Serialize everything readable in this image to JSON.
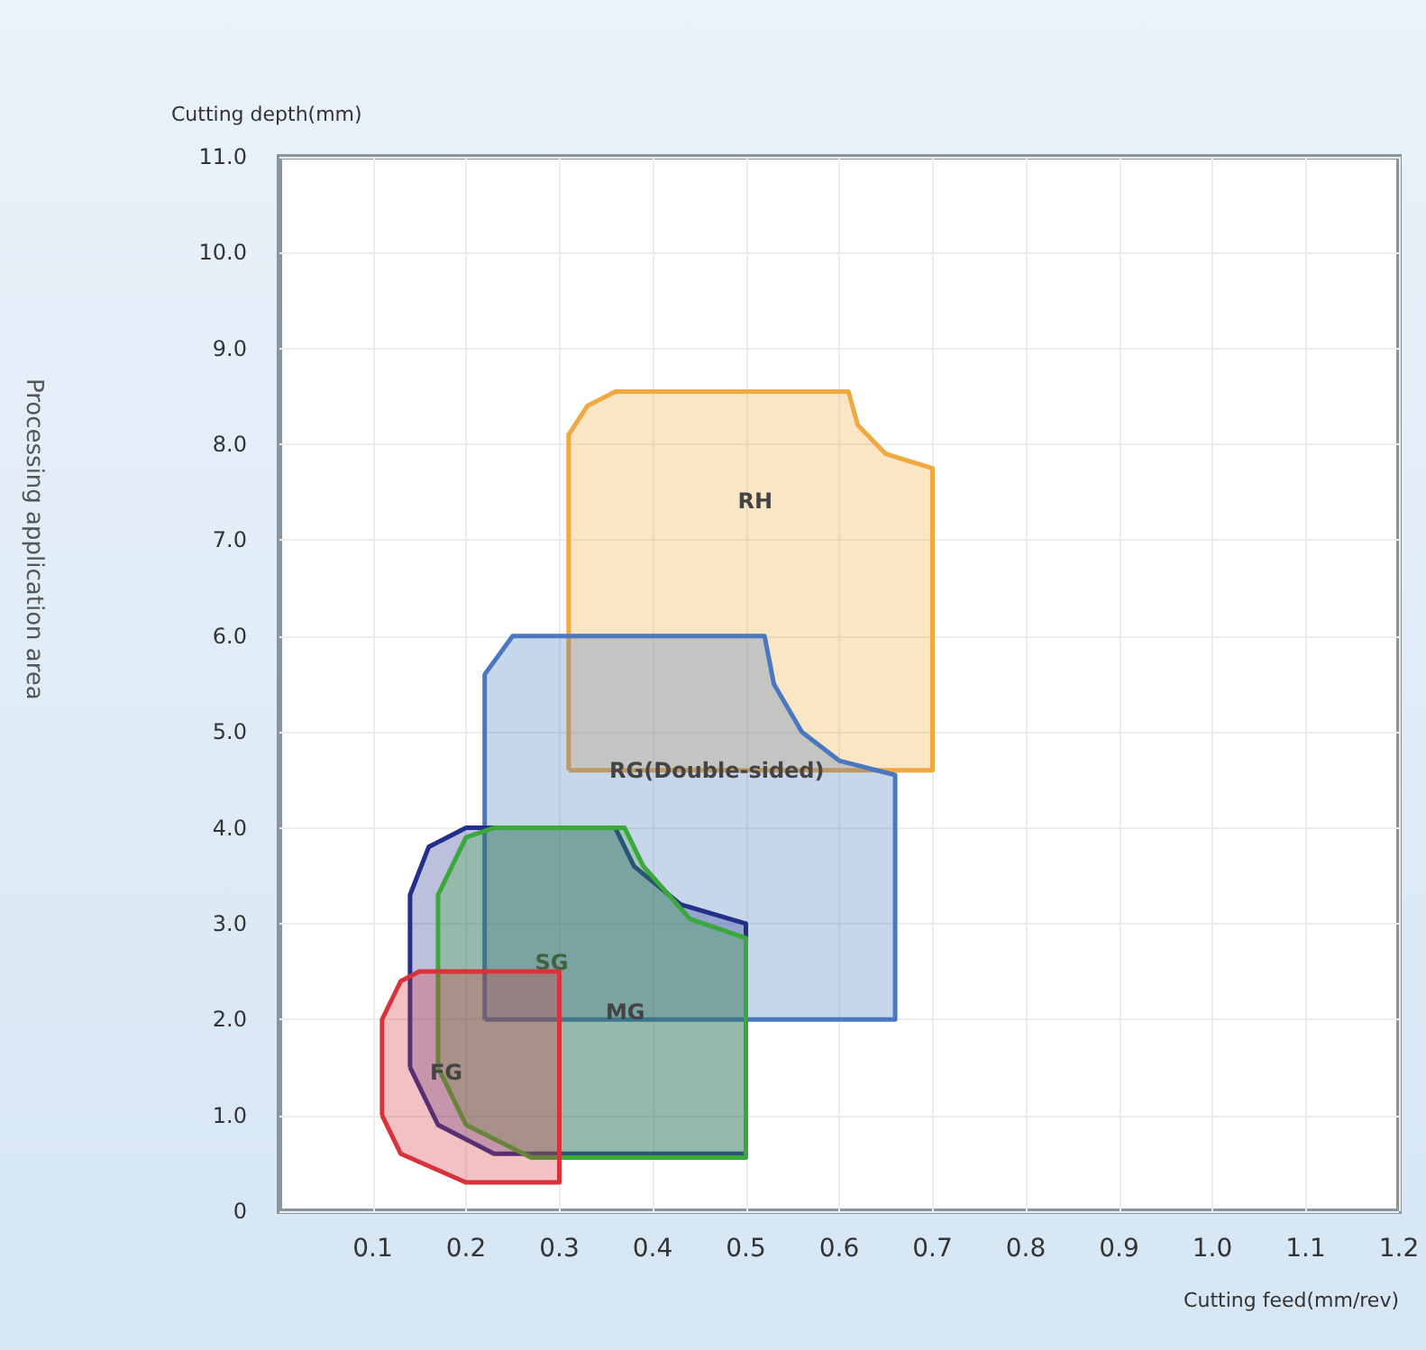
{
  "chart_data": {
    "type": "area",
    "title": "Processing application area",
    "xlabel": "Cutting feed(mm/rev)",
    "ylabel": "Cutting depth(mm)",
    "xlim": [
      0,
      1.2
    ],
    "xticks": [
      0.1,
      0.2,
      0.3,
      0.4,
      0.5,
      0.6,
      0.7,
      0.8,
      0.9,
      {
        "value": 1.0,
        "label": "1.0"
      },
      1.1,
      1.2
    ],
    "ylim": [
      0,
      11
    ],
    "yticks": [
      {
        "value": 0,
        "label": "0"
      },
      {
        "value": 1,
        "label": "1.0"
      },
      {
        "value": 2,
        "label": "2.0"
      },
      {
        "value": 3,
        "label": "3.0"
      },
      {
        "value": 4,
        "label": "4.0"
      },
      {
        "value": 5,
        "label": "5.0"
      },
      {
        "value": 6,
        "label": "6.0"
      },
      {
        "value": 7,
        "label": "7.0"
      },
      {
        "value": 8,
        "label": "8.0"
      },
      {
        "value": 9,
        "label": "9.0"
      },
      {
        "value": 10,
        "label": "10.0"
      },
      {
        "value": 11,
        "label": "11.0"
      }
    ],
    "grid": true,
    "series": [
      {
        "name": "RH",
        "color": "#f0a840",
        "x": [
          0.31,
          0.31,
          0.33,
          0.36,
          0.61,
          0.62,
          0.65,
          0.7,
          0.7
        ],
        "values": [
          4.6,
          8.1,
          8.4,
          8.55,
          8.55,
          8.2,
          7.9,
          7.75,
          4.6
        ]
      },
      {
        "name": "RG(Double-sided)",
        "color": "#4a78c0",
        "x": [
          0.22,
          0.22,
          0.25,
          0.52,
          0.53,
          0.56,
          0.6,
          0.66,
          0.66
        ],
        "values": [
          2.0,
          5.6,
          6.0,
          6.0,
          5.5,
          5.0,
          4.7,
          4.55,
          2.0
        ]
      },
      {
        "name": "SG",
        "color": "#22308a",
        "x": [
          0.14,
          0.14,
          0.16,
          0.2,
          0.36,
          0.38,
          0.43,
          0.5,
          0.5,
          0.23,
          0.17
        ],
        "values": [
          1.5,
          3.3,
          3.8,
          4.0,
          4.0,
          3.6,
          3.2,
          3.0,
          0.6,
          0.6,
          0.9
        ]
      },
      {
        "name": "MG",
        "color": "#3aa83a",
        "x": [
          0.17,
          0.17,
          0.2,
          0.23,
          0.37,
          0.39,
          0.44,
          0.5,
          0.5,
          0.27,
          0.2
        ],
        "values": [
          1.5,
          3.3,
          3.9,
          4.0,
          4.0,
          3.6,
          3.05,
          2.85,
          0.56,
          0.56,
          0.9
        ]
      },
      {
        "name": "FG",
        "color": "#d8333a",
        "x": [
          0.11,
          0.11,
          0.13,
          0.15,
          0.3,
          0.3,
          0.2,
          0.13
        ],
        "values": [
          1.0,
          2.0,
          2.4,
          2.5,
          2.5,
          0.3,
          0.3,
          0.6
        ]
      }
    ]
  }
}
